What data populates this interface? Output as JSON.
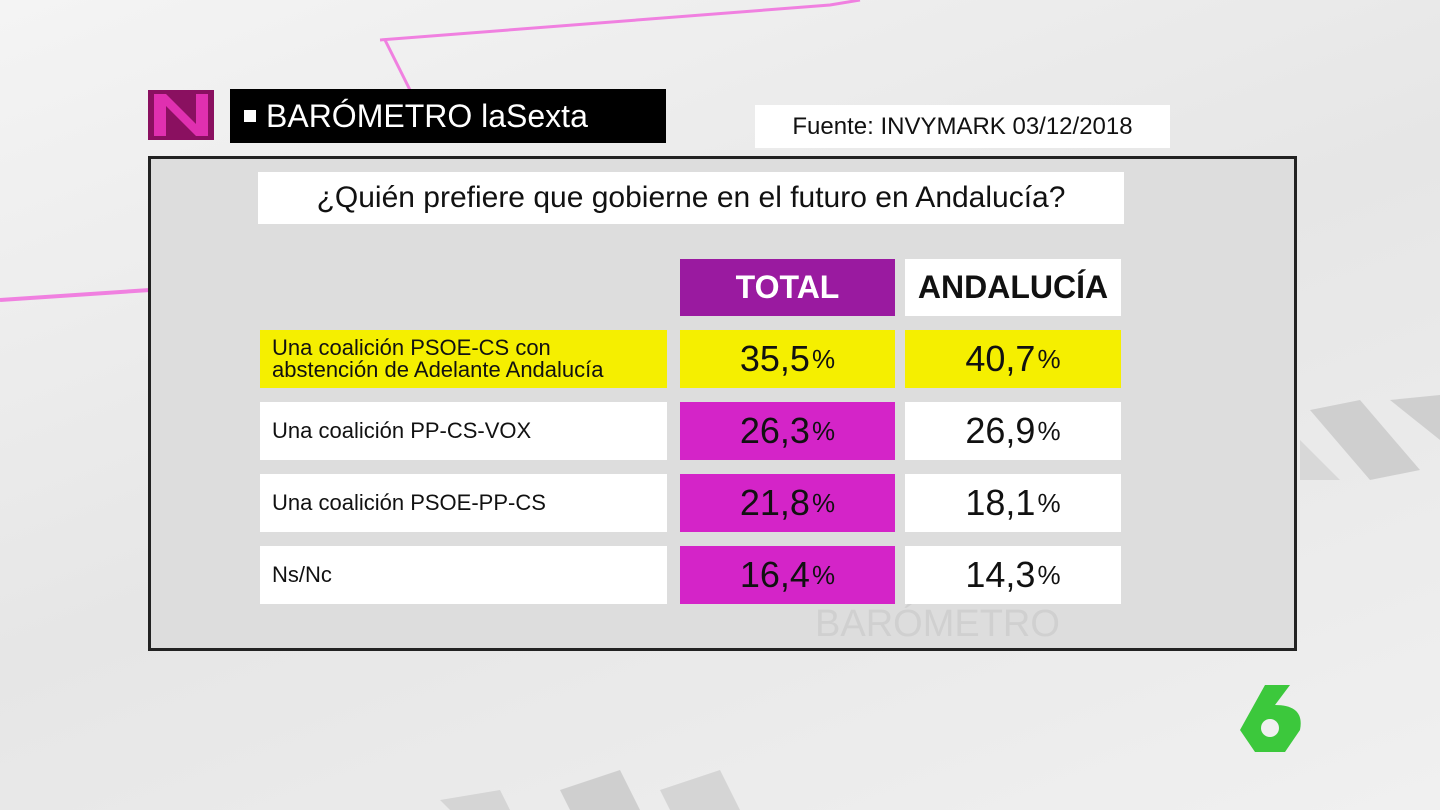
{
  "header": {
    "title": "BARÓMETRO laSexta",
    "source": "Fuente: INVYMARK 03/12/2018"
  },
  "question": "¿Quién prefiere que gobierne en el futuro en Andalucía?",
  "table": {
    "columns": [
      "TOTAL",
      "ANDALUCÍA"
    ],
    "unit": "%",
    "rows": [
      {
        "label": "Una coalición PSOE-CS con\nabstención de Adelante Andalucía",
        "values": [
          "35,5",
          "40,7"
        ]
      },
      {
        "label": "Una coalición PP-CS-VOX",
        "values": [
          "26,3",
          "26,9"
        ]
      },
      {
        "label": "Una coalición PSOE-PP-CS",
        "values": [
          "21,8",
          "18,1"
        ]
      },
      {
        "label": "Ns/Nc",
        "values": [
          "16,4",
          "14,3"
        ]
      }
    ]
  },
  "watermark": "BARÓMETRO"
}
